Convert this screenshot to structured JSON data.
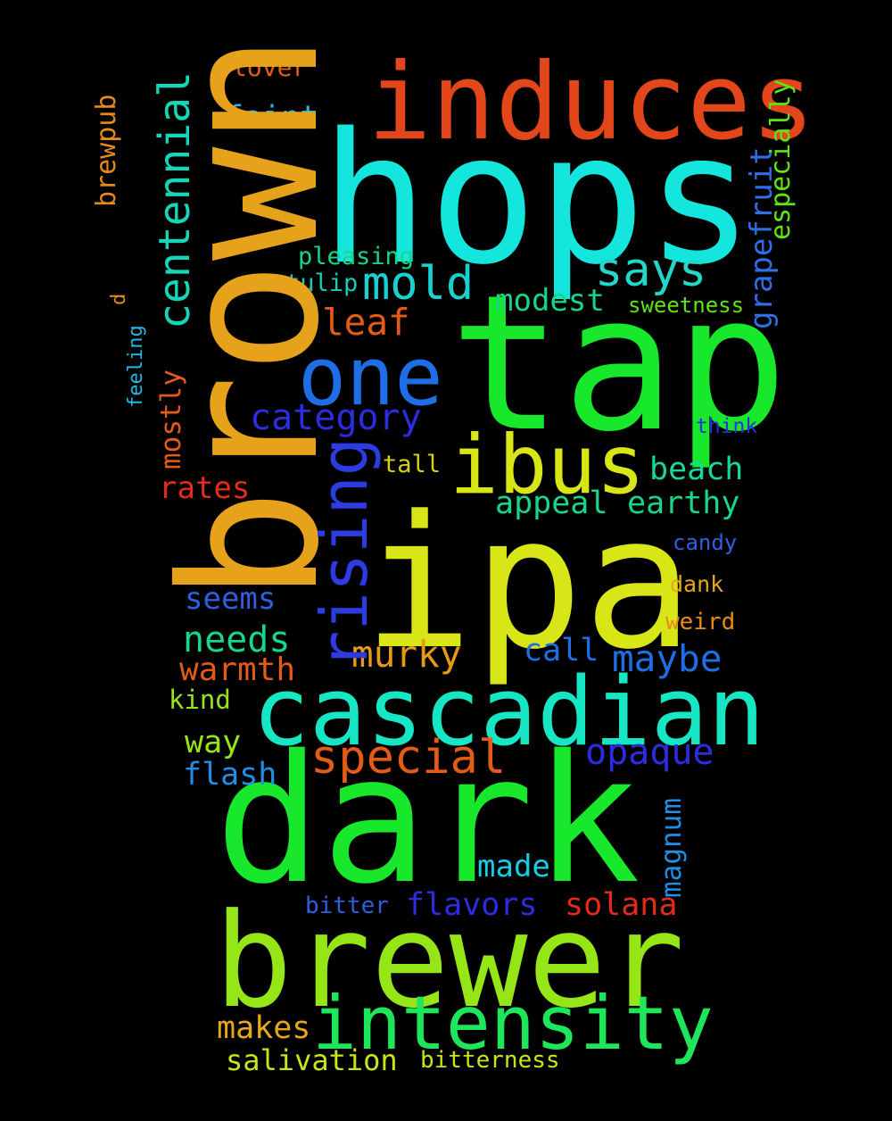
{
  "words": {
    "induces": "induces",
    "hops": "hops",
    "tap": "tap",
    "ipa": "ipa",
    "dark": "dark",
    "brewer": "brewer",
    "cascadian": "cascadian",
    "one": "one",
    "ibus": "ibus",
    "intensity": "intensity",
    "says": "says",
    "mold": "mold",
    "category": "category",
    "special": "special",
    "opaque": "opaque",
    "murky": "murky",
    "maybe": "maybe",
    "leaf": "leaf",
    "beach": "beach",
    "appeal": "appeal",
    "earthy": "earthy",
    "modest": "modest",
    "call": "call",
    "needs": "needs",
    "warmth": "warmth",
    "seems": "seems",
    "made": "made",
    "flavors": "flavors",
    "solana": "solana",
    "flash": "flash",
    "way": "way",
    "rates": "rates",
    "makes": "makes",
    "salivation": "salivation",
    "bitterness": "bitterness",
    "faint": "faint",
    "lover": "lover",
    "pleasing": "pleasing",
    "tulip": "tulip",
    "sweetness": "sweetness",
    "think": "think",
    "tall": "tall",
    "candy": "candy",
    "dank": "dank",
    "weird": "weird",
    "kind": "kind",
    "bitter": "bitter",
    "brown": "brown",
    "rising": "rising",
    "centennial": "centennial",
    "grapefruit": "grapefruit",
    "especially": "especially",
    "mostly": "mostly",
    "brewpub": "brewpub",
    "magnum": "magnum",
    "feeling": "feeling",
    "d": "d"
  }
}
